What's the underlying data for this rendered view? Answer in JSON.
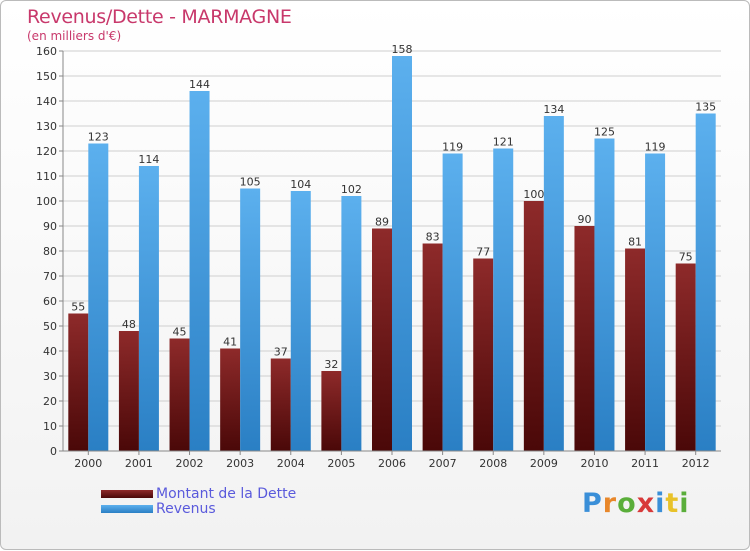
{
  "title": "Revenus/Dette - MARMAGNE",
  "subtitle": "(en milliers d'€)",
  "legend": {
    "debt_label": "Montant de la Dette",
    "revenue_label": "Revenus"
  },
  "brand": "Proxiti",
  "colors": {
    "title": "#c8386b",
    "debt": "#7a1c1c",
    "revenue": "#4ea6e6",
    "legend_text": "#5a5adc"
  },
  "chart_data": {
    "type": "bar",
    "categories": [
      "2000",
      "2001",
      "2002",
      "2003",
      "2004",
      "2005",
      "2006",
      "2007",
      "2008",
      "2009",
      "2010",
      "2011",
      "2012"
    ],
    "series": [
      {
        "name": "Montant de la Dette",
        "values": [
          55,
          48,
          45,
          41,
          37,
          32,
          89,
          83,
          77,
          100,
          90,
          81,
          75
        ]
      },
      {
        "name": "Revenus",
        "values": [
          123,
          114,
          144,
          105,
          104,
          102,
          158,
          119,
          121,
          134,
          125,
          119,
          135
        ]
      }
    ],
    "ylim": [
      0,
      160
    ],
    "yticks": [
      0,
      10,
      20,
      30,
      40,
      50,
      60,
      70,
      80,
      90,
      100,
      110,
      120,
      130,
      140,
      150,
      160
    ],
    "grid": true,
    "legend_position": "bottom-left"
  }
}
